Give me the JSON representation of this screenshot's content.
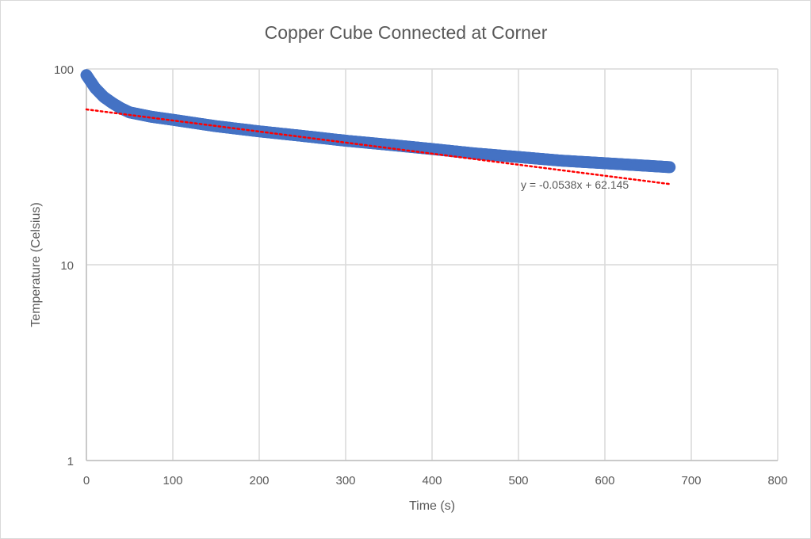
{
  "chart_data": {
    "type": "scatter",
    "title": "Copper Cube Connected at Corner",
    "xlabel": "Time (s)",
    "ylabel": "Temperature (Celsius)",
    "xlim": [
      0,
      800
    ],
    "ylim": [
      1,
      100
    ],
    "yscale": "log",
    "grid": true,
    "legend": "none",
    "x_ticks": [
      "0",
      "100",
      "200",
      "300",
      "400",
      "500",
      "600",
      "700",
      "800"
    ],
    "y_ticks": [
      "1",
      "10",
      "100"
    ],
    "series": [
      {
        "name": "Temperature",
        "color": "#4472C4",
        "x": [
          0,
          10,
          20,
          30,
          40,
          50,
          75,
          100,
          150,
          200,
          250,
          300,
          350,
          400,
          450,
          500,
          550,
          600,
          650,
          675
        ],
        "y": [
          93,
          80,
          72,
          67,
          63,
          60,
          57,
          55,
          51,
          48,
          45.5,
          43,
          41,
          39,
          37,
          35.5,
          34,
          33,
          32,
          31.5
        ]
      }
    ],
    "trendline": {
      "type": "linear",
      "color": "#FF0000",
      "style": "dotted",
      "slope": -0.0538,
      "intercept": 62.145,
      "x_range": [
        0,
        675
      ],
      "equation_label": "y = -0.0538x + 62.145"
    }
  }
}
